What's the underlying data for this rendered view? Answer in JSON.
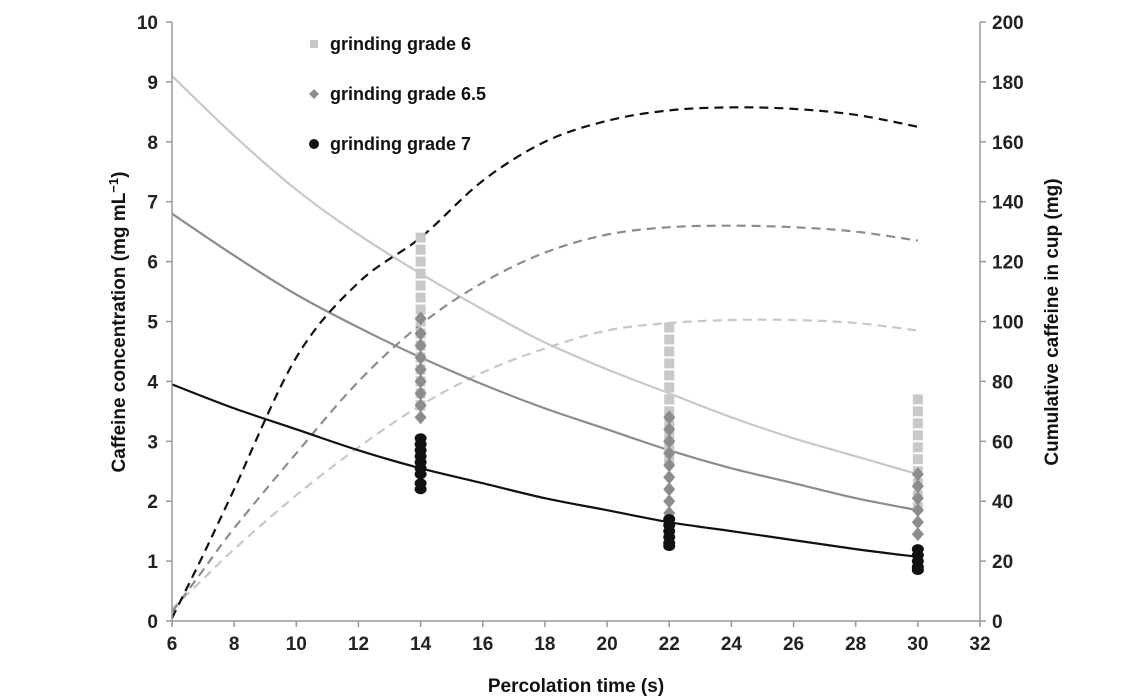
{
  "chart_data": {
    "type": "scatter",
    "xlabel": "Percolation time (s)",
    "ylabel": "Caffeine concentration (mg mL",
    "ylabel_sup": "−1",
    "ylabel_close": ")",
    "y2label": "Cumulative caffeine in cup (mg)",
    "xlim": [
      6,
      32
    ],
    "ylim": [
      0,
      10
    ],
    "y2lim": [
      0,
      200
    ],
    "x_ticks": [
      6,
      8,
      10,
      12,
      14,
      16,
      18,
      20,
      22,
      24,
      26,
      28,
      30,
      32
    ],
    "y_ticks": [
      0,
      1,
      2,
      3,
      4,
      5,
      6,
      7,
      8,
      9,
      10
    ],
    "y2_ticks": [
      0,
      20,
      40,
      60,
      80,
      100,
      120,
      140,
      160,
      180,
      200
    ],
    "grid": false,
    "legend_position": "top-left",
    "series": [
      {
        "name": "grinding grade 6",
        "marker": "square",
        "color": "#c8c8c8",
        "points": [
          [
            14,
            6.4
          ],
          [
            14,
            6.2
          ],
          [
            14,
            6.0
          ],
          [
            14,
            5.8
          ],
          [
            14,
            5.6
          ],
          [
            14,
            5.4
          ],
          [
            14,
            5.2
          ],
          [
            14,
            5.0
          ],
          [
            14,
            4.8
          ],
          [
            14,
            4.6
          ],
          [
            14,
            4.4
          ],
          [
            14,
            4.2
          ],
          [
            14,
            4.0
          ],
          [
            14,
            3.8
          ],
          [
            14,
            3.6
          ],
          [
            22,
            4.9
          ],
          [
            22,
            4.7
          ],
          [
            22,
            4.5
          ],
          [
            22,
            4.3
          ],
          [
            22,
            4.1
          ],
          [
            22,
            3.9
          ],
          [
            22,
            3.7
          ],
          [
            22,
            3.5
          ],
          [
            22,
            3.3
          ],
          [
            22,
            3.1
          ],
          [
            22,
            2.9
          ],
          [
            22,
            2.7
          ],
          [
            30,
            3.7
          ],
          [
            30,
            3.5
          ],
          [
            30,
            3.3
          ],
          [
            30,
            3.1
          ],
          [
            30,
            2.9
          ],
          [
            30,
            2.7
          ],
          [
            30,
            2.5
          ],
          [
            30,
            2.3
          ],
          [
            30,
            2.1
          ],
          [
            30,
            1.9
          ]
        ],
        "concentration_curve": {
          "x": [
            6,
            8,
            10,
            12,
            14,
            16,
            18,
            20,
            22,
            24,
            26,
            28,
            30
          ],
          "y": [
            9.1,
            8.1,
            7.2,
            6.45,
            5.8,
            5.2,
            4.65,
            4.2,
            3.8,
            3.4,
            3.05,
            2.75,
            2.45
          ]
        },
        "cumulative_curve": {
          "x": [
            6,
            7,
            8,
            10,
            12,
            14,
            16,
            18,
            20,
            22,
            24,
            26,
            28,
            30
          ],
          "y2": [
            4,
            14,
            24,
            42,
            58,
            72,
            83,
            91,
            97,
            99.5,
            100.5,
            100.5,
            99.5,
            97
          ]
        }
      },
      {
        "name": "grinding grade 6.5",
        "marker": "diamond",
        "color": "#8c8c8c",
        "points": [
          [
            14,
            5.05
          ],
          [
            14,
            4.8
          ],
          [
            14,
            4.6
          ],
          [
            14,
            4.4
          ],
          [
            14,
            4.2
          ],
          [
            14,
            4.0
          ],
          [
            14,
            3.8
          ],
          [
            14,
            3.6
          ],
          [
            14,
            3.4
          ],
          [
            22,
            3.4
          ],
          [
            22,
            3.2
          ],
          [
            22,
            3.0
          ],
          [
            22,
            2.8
          ],
          [
            22,
            2.6
          ],
          [
            22,
            2.4
          ],
          [
            22,
            2.2
          ],
          [
            22,
            2.0
          ],
          [
            22,
            1.8
          ],
          [
            30,
            2.45
          ],
          [
            30,
            2.25
          ],
          [
            30,
            2.05
          ],
          [
            30,
            1.85
          ],
          [
            30,
            1.65
          ],
          [
            30,
            1.45
          ]
        ],
        "concentration_curve": {
          "x": [
            6,
            8,
            10,
            12,
            14,
            16,
            18,
            20,
            22,
            24,
            26,
            28,
            30
          ],
          "y": [
            6.8,
            6.1,
            5.45,
            4.9,
            4.4,
            3.95,
            3.55,
            3.2,
            2.85,
            2.55,
            2.3,
            2.05,
            1.85
          ]
        },
        "cumulative_curve": {
          "x": [
            6,
            7,
            8,
            10,
            12,
            14,
            16,
            18,
            20,
            22,
            24,
            26,
            28,
            30
          ],
          "y2": [
            3,
            17,
            31,
            56,
            80,
            99,
            113,
            123,
            129,
            131.5,
            132,
            131.5,
            130,
            127
          ]
        }
      },
      {
        "name": "grinding grade 7",
        "marker": "circle",
        "color": "#111111",
        "points": [
          [
            14,
            3.05
          ],
          [
            14,
            2.95
          ],
          [
            14,
            2.85
          ],
          [
            14,
            2.75
          ],
          [
            14,
            2.65
          ],
          [
            14,
            2.55
          ],
          [
            14,
            2.45
          ],
          [
            14,
            2.3
          ],
          [
            14,
            2.2
          ],
          [
            22,
            1.7
          ],
          [
            22,
            1.6
          ],
          [
            22,
            1.5
          ],
          [
            22,
            1.4
          ],
          [
            22,
            1.3
          ],
          [
            22,
            1.25
          ],
          [
            30,
            1.2
          ],
          [
            30,
            1.1
          ],
          [
            30,
            1.0
          ],
          [
            30,
            0.9
          ],
          [
            30,
            0.85
          ]
        ],
        "concentration_curve": {
          "x": [
            6,
            8,
            10,
            12,
            14,
            16,
            18,
            20,
            22,
            24,
            26,
            28,
            30
          ],
          "y": [
            3.95,
            3.55,
            3.2,
            2.85,
            2.55,
            2.3,
            2.05,
            1.85,
            1.65,
            1.5,
            1.35,
            1.2,
            1.07
          ]
        },
        "cumulative_curve": {
          "x": [
            6,
            7,
            8,
            10,
            12,
            14,
            16,
            18,
            20,
            22,
            24,
            26,
            28,
            30
          ],
          "y2": [
            1,
            22,
            44,
            88,
            113,
            128,
            147,
            160,
            167,
            170.5,
            171.5,
            171,
            169,
            165
          ]
        }
      }
    ]
  }
}
